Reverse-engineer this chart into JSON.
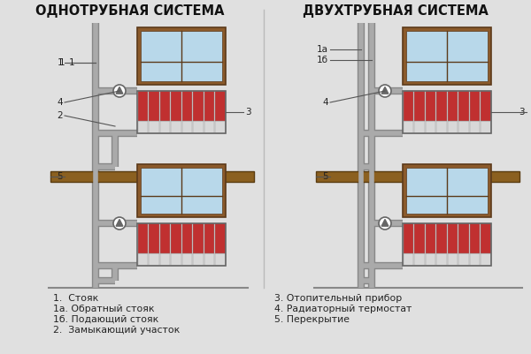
{
  "bg_color": "#e0e0e0",
  "title_left": "ОДНОТРУБНАЯ СИСТЕМА",
  "title_right": "ДВУХТРУБНАЯ СИСТЕМА",
  "pipe_color": "#aaaaaa",
  "pipe_outline": "#888888",
  "pipe_lw": 5,
  "wall_color": "#c0c0c0",
  "window_frame_color": "#8B5A2B",
  "window_frame_dark": "#5C3A1A",
  "window_glass_color": "#b8d8ea",
  "window_glass_dark": "#90b8d0",
  "radiator_hot_color": "#c03030",
  "radiator_cold_color": "#d8d8d8",
  "radiator_mid_color": "#b0b0b0",
  "floor_color": "#8B6020",
  "floor_outline": "#5A3C10",
  "thermostat_color": "#666666",
  "label_color": "#222222",
  "line_color": "#555555",
  "legend_left": [
    "1.  Стояк",
    "1а. Обратный стояк",
    "1б. Подающий стояк",
    "2.  Замыкающий участок"
  ],
  "legend_right": [
    "3. Отопительный прибор",
    "4. Радиаторный термостат",
    "5. Перекрытие"
  ],
  "title_fontsize": 10.5,
  "label_fontsize": 7.5,
  "legend_fontsize": 7.8
}
